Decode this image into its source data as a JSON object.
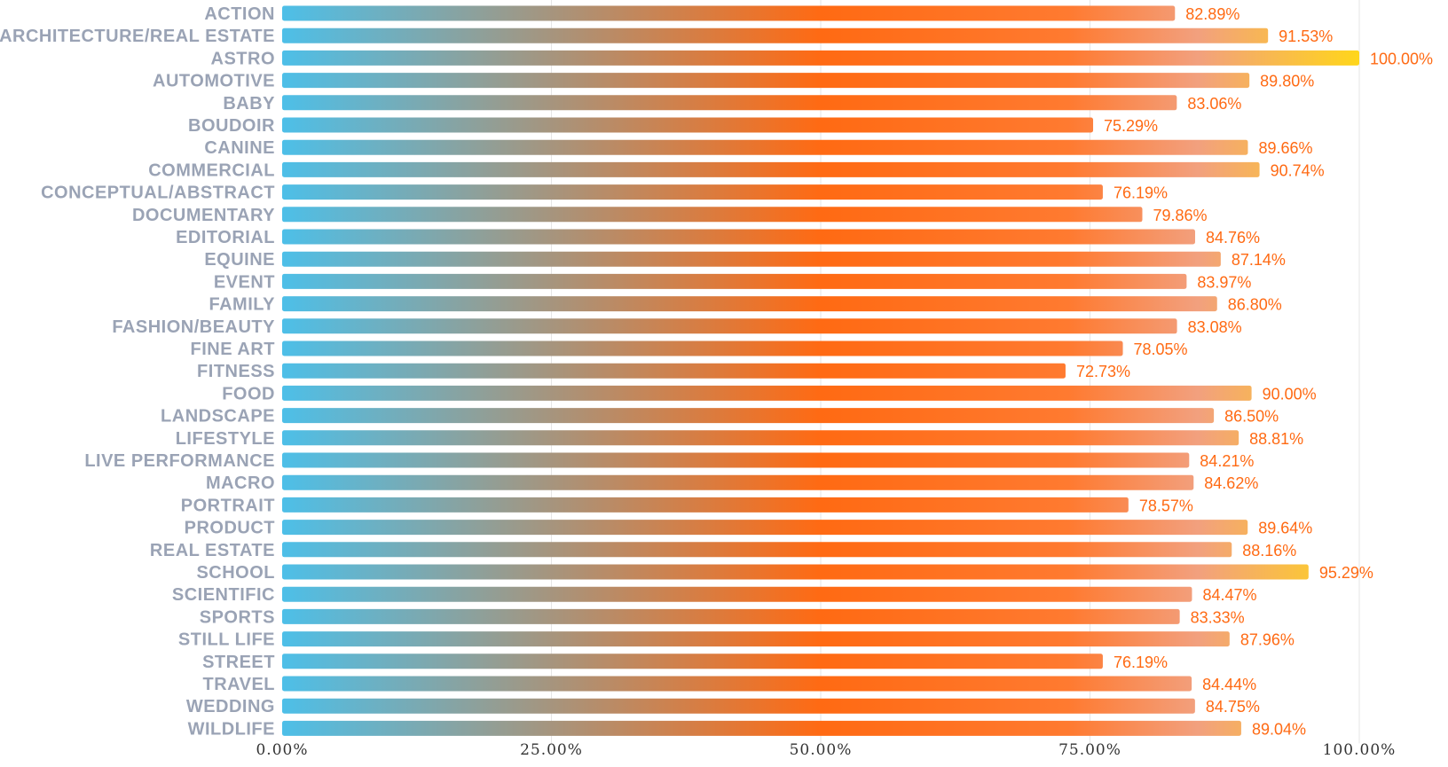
{
  "colors": {
    "label": "#9aa3b5",
    "value_label": "#ff6a13",
    "tick": "#333333",
    "grid": "#e6e6e6",
    "gradient_start": "#4dbfe8",
    "gradient_mid": "#ff6a13",
    "gradient_pink": "#f2a07e",
    "gradient_end": "#ffd61a"
  },
  "chart_data": {
    "type": "bar",
    "orientation": "horizontal",
    "title": "",
    "xlabel": "",
    "ylabel": "",
    "xlim": [
      0,
      100
    ],
    "grid": true,
    "legend": "none",
    "x_ticks": [
      "0.00%",
      "25.00%",
      "50.00%",
      "75.00%",
      "100.00%"
    ],
    "x_tick_values": [
      0,
      25,
      50,
      75,
      100
    ],
    "categories": [
      "ACTION",
      "ARCHITECTURE/REAL ESTATE",
      "ASTRO",
      "AUTOMOTIVE",
      "BABY",
      "BOUDOIR",
      "CANINE",
      "COMMERCIAL",
      "CONCEPTUAL/ABSTRACT",
      "DOCUMENTARY",
      "EDITORIAL",
      "EQUINE",
      "EVENT",
      "FAMILY",
      "FASHION/BEAUTY",
      "FINE ART",
      "FITNESS",
      "FOOD",
      "LANDSCAPE",
      "LIFESTYLE",
      "LIVE PERFORMANCE",
      "MACRO",
      "PORTRAIT",
      "PRODUCT",
      "REAL ESTATE",
      "SCHOOL",
      "SCIENTIFIC",
      "SPORTS",
      "STILL LIFE",
      "STREET",
      "TRAVEL",
      "WEDDING",
      "WILDLIFE"
    ],
    "values": [
      82.89,
      91.53,
      100.0,
      89.8,
      83.06,
      75.29,
      89.66,
      90.74,
      76.19,
      79.86,
      84.76,
      87.14,
      83.97,
      86.8,
      83.08,
      78.05,
      72.73,
      90.0,
      86.5,
      88.81,
      84.21,
      84.62,
      78.57,
      89.64,
      88.16,
      95.29,
      84.47,
      83.33,
      87.96,
      76.19,
      84.44,
      84.75,
      89.04
    ],
    "value_labels": [
      "82.89%",
      "91.53%",
      "100.00%",
      "89.80%",
      "83.06%",
      "75.29%",
      "89.66%",
      "90.74%",
      "76.19%",
      "79.86%",
      "84.76%",
      "87.14%",
      "83.97%",
      "86.80%",
      "83.08%",
      "78.05%",
      "72.73%",
      "90.00%",
      "86.50%",
      "88.81%",
      "84.21%",
      "84.62%",
      "78.57%",
      "89.64%",
      "88.16%",
      "95.29%",
      "84.47%",
      "83.33%",
      "87.96%",
      "76.19%",
      "84.44%",
      "84.75%",
      "89.04%"
    ]
  }
}
